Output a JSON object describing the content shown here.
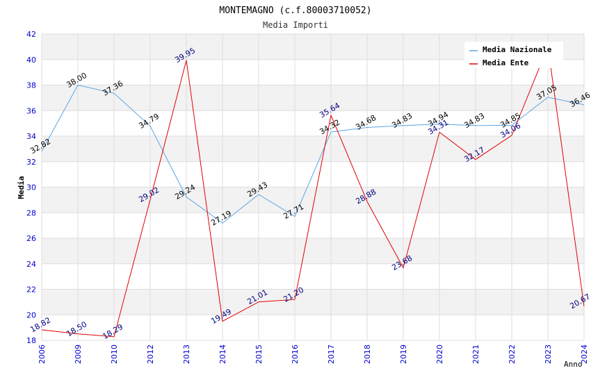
{
  "chart_data": {
    "type": "line",
    "title": "MONTEMAGNO (c.f.80003710052)",
    "subtitle": "Media Importi",
    "xlabel": "Anno",
    "ylabel": "Media",
    "ylim": [
      18,
      42
    ],
    "yticks": [
      18,
      20,
      22,
      24,
      26,
      28,
      30,
      32,
      34,
      36,
      38,
      40,
      42
    ],
    "categories": [
      "2006",
      "2009",
      "2010",
      "2012",
      "2013",
      "2014",
      "2015",
      "2016",
      "2017",
      "2018",
      "2019",
      "2020",
      "2021",
      "2022",
      "2023",
      "2024"
    ],
    "grid": true,
    "legend_position": "top-right",
    "series": [
      {
        "name": "Media Nazionale",
        "color": "#5aa5e6",
        "label_color": "#000000",
        "values": [
          32.82,
          38.0,
          37.36,
          34.79,
          29.24,
          27.19,
          29.43,
          27.71,
          34.32,
          34.68,
          34.83,
          34.94,
          34.83,
          34.85,
          37.05,
          36.46
        ],
        "labels": [
          "32.82",
          "38.00",
          "37.36",
          "34.79",
          "29.24",
          "27.19",
          "29.43",
          "27.71",
          "34.32",
          "34.68",
          "34.83",
          "34.94",
          "34.83",
          "34.85",
          "37.05",
          "36.46"
        ]
      },
      {
        "name": "Media Ente",
        "color": "#e00000",
        "label_color": "#000080",
        "values": [
          18.82,
          18.5,
          18.29,
          29.02,
          39.95,
          19.49,
          21.01,
          21.2,
          35.64,
          28.88,
          23.68,
          34.31,
          32.17,
          34.06,
          41.0,
          20.67
        ],
        "labels": [
          "18.82",
          "18.50",
          "18.29",
          "29.02",
          "39.95",
          "19.49",
          "21.01",
          "21.20",
          "35.64",
          "28.88",
          "23.68",
          "34.31",
          "32.17",
          "34.06",
          "",
          "20.67"
        ]
      }
    ]
  }
}
